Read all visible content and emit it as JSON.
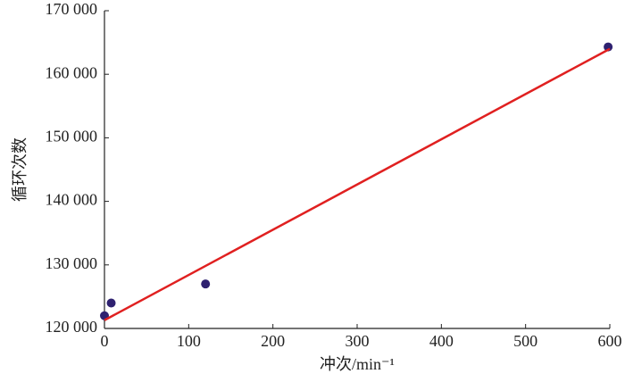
{
  "chart_data": {
    "type": "scatter",
    "x_label": "冲次/min⁻¹",
    "y_label": "循环次数",
    "xlim": [
      0,
      600
    ],
    "xticks": [
      0,
      100,
      200,
      300,
      400,
      500,
      600
    ],
    "ylim": [
      120000,
      170000
    ],
    "yticks": [
      {
        "value": 120000,
        "label": "120 000"
      },
      {
        "value": 130000,
        "label": "130 000"
      },
      {
        "value": 140000,
        "label": "140 000"
      },
      {
        "value": 150000,
        "label": "150 000"
      },
      {
        "value": 160000,
        "label": "160 000"
      },
      {
        "value": 170000,
        "label": "170 000"
      }
    ],
    "series": [
      {
        "type": "scatter",
        "color": "#2e2170",
        "x": [
          0,
          8,
          120,
          598
        ],
        "values": [
          122000,
          124000,
          127000,
          164300
        ]
      },
      {
        "type": "line",
        "color": "#e02020",
        "x": [
          0,
          600
        ],
        "values": [
          121300,
          164000
        ]
      }
    ]
  }
}
